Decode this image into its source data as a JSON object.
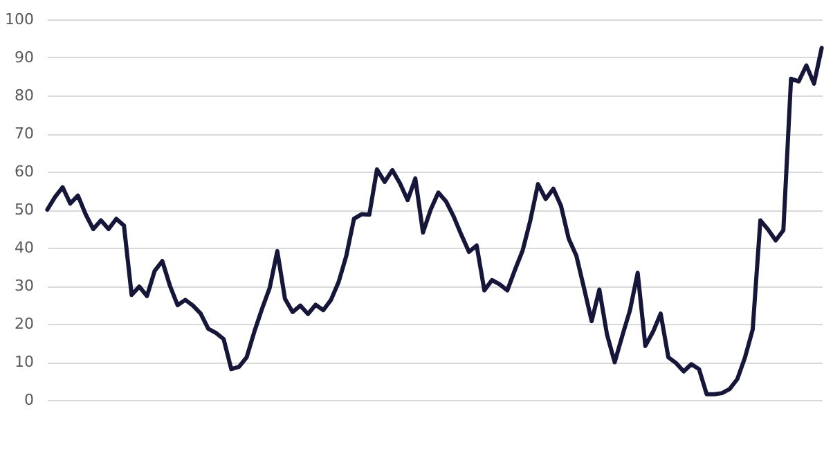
{
  "chart_data": {
    "type": "line",
    "categories": [
      null,
      null,
      null,
      null,
      null,
      null,
      null,
      null,
      null,
      null,
      null,
      null,
      null,
      null,
      null,
      null,
      null,
      null,
      null,
      null,
      null,
      null,
      null,
      null,
      null,
      null,
      null,
      null,
      null,
      null,
      null,
      null,
      null,
      null,
      null,
      null,
      null,
      null,
      null,
      null,
      null,
      null,
      null,
      null,
      null,
      null,
      null,
      null,
      null,
      null,
      null,
      null,
      null,
      null,
      null,
      null,
      null,
      null,
      null,
      null,
      null,
      null,
      null,
      null,
      null,
      null,
      null,
      null,
      null,
      null,
      null,
      null,
      null,
      null,
      null,
      null,
      null,
      null,
      null,
      null,
      null,
      null,
      null,
      null,
      null,
      null,
      null,
      null,
      null,
      null,
      null,
      null,
      null,
      null,
      null,
      null,
      null,
      null,
      null,
      null,
      null,
      null
    ],
    "series": [
      {
        "color": "#16163a",
        "values": [
          50,
          53.3,
          55.9,
          51.6,
          53.7,
          48.8,
          44.9,
          47.2,
          44.9,
          47.6,
          45.8,
          27.6,
          29.8,
          27.3,
          33.9,
          36.5,
          30,
          24.9,
          26.3,
          24.8,
          22.7,
          18.7,
          17.6,
          16,
          8.1,
          8.7,
          11.2,
          17.9,
          23.9,
          29.4,
          39.1,
          26.6,
          23.1,
          24.8,
          22.6,
          25,
          23.6,
          26.3,
          31,
          37.9,
          47.6,
          48.8,
          48.7,
          60.6,
          57.3,
          60.4,
          56.9,
          52.5,
          58.2,
          44,
          50,
          54.5,
          52.2,
          48.2,
          43.4,
          38.9,
          40.6,
          28.8,
          31.5,
          30.4,
          28.8,
          34.2,
          39.3,
          47.2,
          56.7,
          52.8,
          55.5,
          51,
          42.4,
          37.9,
          29.4,
          20.7,
          29,
          17.2,
          9.9,
          16.9,
          23.6,
          33.4,
          14.2,
          17.9,
          22.7,
          11.2,
          9.7,
          7.5,
          9.4,
          8.1,
          1.5,
          1.5,
          1.8,
          2.9,
          5.5,
          11.2,
          18.5,
          47.2,
          44.8,
          41.9,
          44.6,
          84.4,
          83.7,
          87.9,
          83.1,
          92.5
        ]
      }
    ],
    "ylim": [
      0,
      100
    ],
    "yticks": [
      0,
      10,
      20,
      30,
      40,
      50,
      60,
      70,
      80,
      90,
      100
    ],
    "grid": "y",
    "tick_labels": "y",
    "line_style": "solid",
    "marker": "none"
  }
}
